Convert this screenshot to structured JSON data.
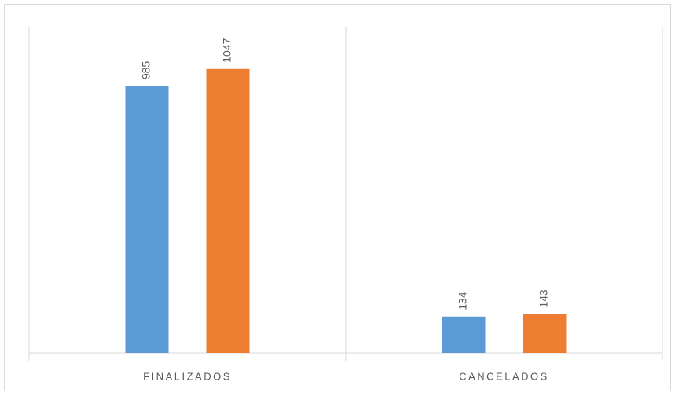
{
  "chart_data": {
    "type": "bar",
    "categories": [
      "FINALIZADOS",
      "CANCELADOS"
    ],
    "series": [
      {
        "color": "#5b9bd5",
        "values": [
          985,
          134
        ]
      },
      {
        "color": "#ed7d31",
        "values": [
          1047,
          143
        ]
      }
    ],
    "ylim": [
      0,
      1200
    ]
  }
}
